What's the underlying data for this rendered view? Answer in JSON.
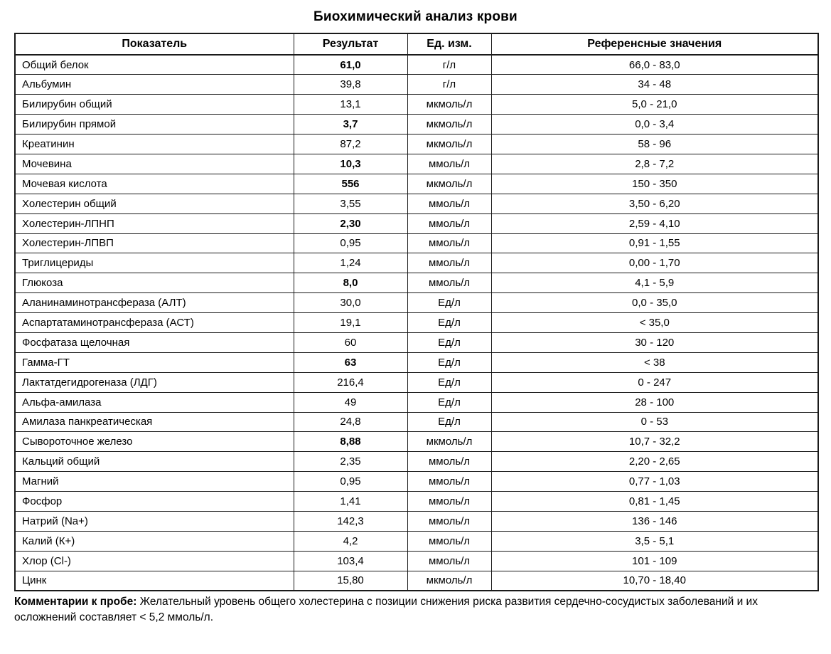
{
  "title": "Биохимический анализ крови",
  "table": {
    "headers": [
      "Показатель",
      "Результат",
      "Ед. изм.",
      "Референсные значения"
    ],
    "rows": [
      {
        "name": "Общий белок",
        "result": "61,0",
        "flagged": true,
        "unit": "г/л",
        "ref": "66,0 - 83,0"
      },
      {
        "name": "Альбумин",
        "result": "39,8",
        "flagged": false,
        "unit": "г/л",
        "ref": "34 - 48"
      },
      {
        "name": "Билирубин общий",
        "result": "13,1",
        "flagged": false,
        "unit": "мкмоль/л",
        "ref": "5,0 - 21,0"
      },
      {
        "name": "Билирубин прямой",
        "result": "3,7",
        "flagged": true,
        "unit": "мкмоль/л",
        "ref": "0,0 - 3,4"
      },
      {
        "name": "Креатинин",
        "result": "87,2",
        "flagged": false,
        "unit": "мкмоль/л",
        "ref": "58 - 96"
      },
      {
        "name": "Мочевина",
        "result": "10,3",
        "flagged": true,
        "unit": "ммоль/л",
        "ref": "2,8 - 7,2"
      },
      {
        "name": "Мочевая кислота",
        "result": "556",
        "flagged": true,
        "unit": "мкмоль/л",
        "ref": "150 - 350"
      },
      {
        "name": "Холестерин общий",
        "result": "3,55",
        "flagged": false,
        "unit": "ммоль/л",
        "ref": "3,50 - 6,20"
      },
      {
        "name": "Холестерин-ЛПНП",
        "result": "2,30",
        "flagged": true,
        "unit": "ммоль/л",
        "ref": "2,59 - 4,10"
      },
      {
        "name": "Холестерин-ЛПВП",
        "result": "0,95",
        "flagged": false,
        "unit": "ммоль/л",
        "ref": "0,91 - 1,55"
      },
      {
        "name": "Триглицериды",
        "result": "1,24",
        "flagged": false,
        "unit": "ммоль/л",
        "ref": "0,00 - 1,70"
      },
      {
        "name": "Глюкоза",
        "result": "8,0",
        "flagged": true,
        "unit": "ммоль/л",
        "ref": "4,1 - 5,9"
      },
      {
        "name": "Аланинаминотрансфераза (АЛТ)",
        "result": "30,0",
        "flagged": false,
        "unit": "Ед/л",
        "ref": "0,0 - 35,0"
      },
      {
        "name": "Аспартатаминотрансфераза (АСТ)",
        "result": "19,1",
        "flagged": false,
        "unit": "Ед/л",
        "ref": "< 35,0"
      },
      {
        "name": "Фосфатаза щелочная",
        "result": "60",
        "flagged": false,
        "unit": "Ед/л",
        "ref": "30 - 120"
      },
      {
        "name": "Гамма-ГТ",
        "result": "63",
        "flagged": true,
        "unit": "Ед/л",
        "ref": "< 38"
      },
      {
        "name": "Лактатдегидрогеназа (ЛДГ)",
        "result": "216,4",
        "flagged": false,
        "unit": "Ед/л",
        "ref": "0 - 247"
      },
      {
        "name": "Альфа-амилаза",
        "result": "49",
        "flagged": false,
        "unit": "Ед/л",
        "ref": "28 - 100"
      },
      {
        "name": "Амилаза панкреатическая",
        "result": "24,8",
        "flagged": false,
        "unit": "Ед/л",
        "ref": "0 - 53"
      },
      {
        "name": "Сывороточное железо",
        "result": "8,88",
        "flagged": true,
        "unit": "мкмоль/л",
        "ref": "10,7 - 32,2"
      },
      {
        "name": "Кальций общий",
        "result": "2,35",
        "flagged": false,
        "unit": "ммоль/л",
        "ref": "2,20 - 2,65"
      },
      {
        "name": "Магний",
        "result": "0,95",
        "flagged": false,
        "unit": "ммоль/л",
        "ref": "0,77 - 1,03"
      },
      {
        "name": "Фосфор",
        "result": "1,41",
        "flagged": false,
        "unit": "ммоль/л",
        "ref": "0,81 - 1,45"
      },
      {
        "name": "Натрий (Na+)",
        "result": "142,3",
        "flagged": false,
        "unit": "ммоль/л",
        "ref": "136 - 146"
      },
      {
        "name": "Калий (К+)",
        "result": "4,2",
        "flagged": false,
        "unit": "ммоль/л",
        "ref": "3,5 - 5,1"
      },
      {
        "name": "Хлор (Cl-)",
        "result": "103,4",
        "flagged": false,
        "unit": "ммоль/л",
        "ref": "101 - 109"
      },
      {
        "name": "Цинк",
        "result": "15,80",
        "flagged": false,
        "unit": "мкмоль/л",
        "ref": "10,70 - 18,40"
      }
    ]
  },
  "comments": {
    "label": "Комментарии к пробе:",
    "text": "Желательный уровень общего холестерина с позиции снижения риска развития сердечно-сосудистых заболеваний и их осложнений составляет < 5,2 ммоль/л."
  }
}
